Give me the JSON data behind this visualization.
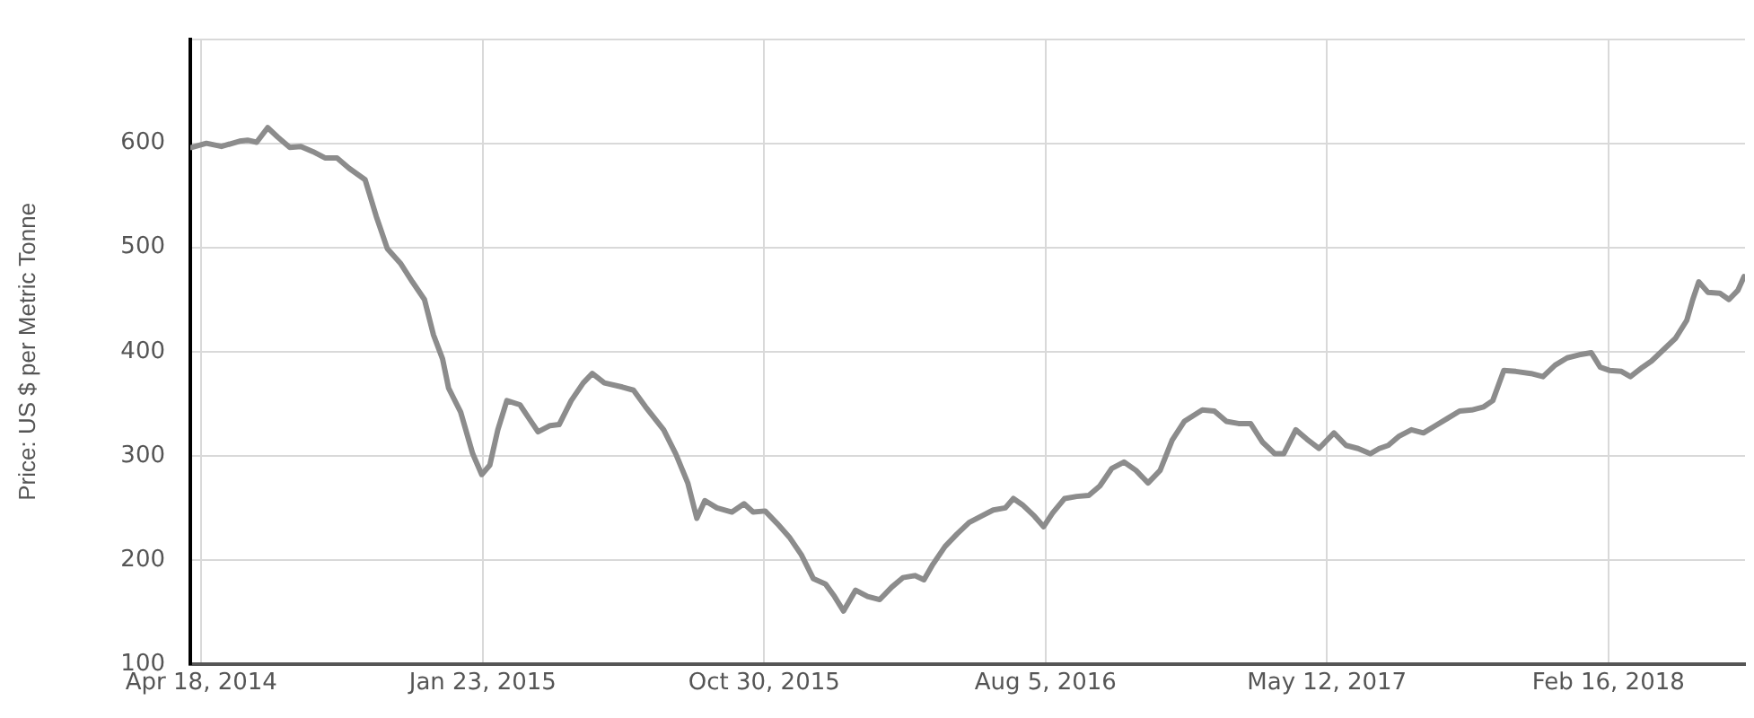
{
  "chart_data": {
    "type": "line",
    "ylabel": "Price: US $ per Metric Tonne",
    "xlim": [
      "2014-04-07",
      "2018-07-02"
    ],
    "xticks": [
      {
        "value": "2014-04-18",
        "label": "Apr 18, 2014"
      },
      {
        "value": "2015-01-23",
        "label": "Jan 23, 2015"
      },
      {
        "value": "2015-10-30",
        "label": "Oct 30, 2015"
      },
      {
        "value": "2016-08-05",
        "label": "Aug 5, 2016"
      },
      {
        "value": "2017-05-12",
        "label": "May 12, 2017"
      },
      {
        "value": "2018-02-16",
        "label": "Feb 16, 2018"
      }
    ],
    "ylim": [
      100,
      700
    ],
    "yticks": [
      100,
      200,
      300,
      400,
      500,
      600,
      {
        "value": 700,
        "label": null
      }
    ],
    "grid": true,
    "legend": false,
    "marker": "none",
    "line_style": "solid",
    "series": [
      {
        "color": "#8c8c8c",
        "x": [
          "2014-04-08",
          "2014-04-23",
          "2014-05-08",
          "2014-05-26",
          "2014-06-03",
          "2014-06-12",
          "2014-06-23",
          "2014-07-03",
          "2014-07-15",
          "2014-07-26",
          "2014-08-07",
          "2014-08-19",
          "2014-08-31",
          "2014-09-12",
          "2014-09-28",
          "2014-10-09",
          "2014-10-20",
          "2014-11-02",
          "2014-11-14",
          "2014-11-26",
          "2014-12-05",
          "2014-12-14",
          "2014-12-20",
          "2015-01-01",
          "2015-01-13",
          "2015-01-22",
          "2015-01-30",
          "2015-02-07",
          "2015-02-16",
          "2015-03-01",
          "2015-03-10",
          "2015-03-19",
          "2015-03-31",
          "2015-04-09",
          "2015-04-21",
          "2015-05-03",
          "2015-05-12",
          "2015-05-24",
          "2015-06-11",
          "2015-06-22",
          "2015-07-04",
          "2015-07-22",
          "2015-08-03",
          "2015-08-15",
          "2015-08-24",
          "2015-09-01",
          "2015-09-13",
          "2015-09-28",
          "2015-10-10",
          "2015-10-19",
          "2015-10-31",
          "2015-11-12",
          "2015-11-24",
          "2015-12-06",
          "2015-12-18",
          "2015-12-30",
          "2016-01-08",
          "2016-01-17",
          "2016-01-29",
          "2016-02-10",
          "2016-02-22",
          "2016-03-05",
          "2016-03-16",
          "2016-03-28",
          "2016-04-06",
          "2016-04-15",
          "2016-04-27",
          "2016-05-09",
          "2016-05-21",
          "2016-06-02",
          "2016-06-14",
          "2016-06-26",
          "2016-07-04",
          "2016-07-13",
          "2016-07-25",
          "2016-08-03",
          "2016-08-12",
          "2016-08-24",
          "2016-09-05",
          "2016-09-17",
          "2016-09-28",
          "2016-10-10",
          "2016-10-22",
          "2016-11-03",
          "2016-11-15",
          "2016-11-27",
          "2016-12-09",
          "2016-12-21",
          "2017-01-08",
          "2017-01-20",
          "2017-02-01",
          "2017-02-13",
          "2017-02-25",
          "2017-03-09",
          "2017-03-21",
          "2017-03-30",
          "2017-04-11",
          "2017-04-22",
          "2017-05-04",
          "2017-05-19",
          "2017-05-31",
          "2017-06-12",
          "2017-06-24",
          "2017-07-03",
          "2017-07-12",
          "2017-07-23",
          "2017-08-04",
          "2017-08-16",
          "2017-08-28",
          "2017-09-09",
          "2017-09-21",
          "2017-10-03",
          "2017-10-15",
          "2017-10-24",
          "2017-11-04",
          "2017-11-16",
          "2017-12-01",
          "2017-12-13",
          "2017-12-25",
          "2018-01-06",
          "2018-01-18",
          "2018-01-30",
          "2018-02-08",
          "2018-02-17",
          "2018-03-01",
          "2018-03-10",
          "2018-03-22",
          "2018-03-31",
          "2018-04-12",
          "2018-04-24",
          "2018-05-05",
          "2018-05-11",
          "2018-05-17",
          "2018-05-26",
          "2018-06-07",
          "2018-06-16",
          "2018-06-25",
          "2018-07-01"
        ],
        "values": [
          596,
          600,
          597,
          602,
          603,
          601,
          615,
          606,
          596,
          597,
          592,
          586,
          586,
          576,
          565,
          530,
          499,
          485,
          467,
          450,
          416,
          393,
          365,
          342,
          302,
          282,
          291,
          325,
          353,
          349,
          336,
          323,
          329,
          330,
          353,
          370,
          379,
          370,
          366,
          363,
          347,
          325,
          302,
          274,
          240,
          257,
          250,
          246,
          254,
          246,
          247,
          235,
          222,
          205,
          182,
          177,
          165,
          151,
          171,
          165,
          162,
          174,
          183,
          185,
          181,
          196,
          213,
          225,
          236,
          242,
          248,
          250,
          259,
          253,
          242,
          232,
          245,
          259,
          261,
          262,
          271,
          288,
          294,
          286,
          274,
          286,
          315,
          333,
          344,
          343,
          333,
          331,
          331,
          313,
          302,
          302,
          325,
          316,
          307,
          322,
          310,
          307,
          302,
          307,
          310,
          319,
          325,
          322,
          329,
          336,
          343,
          344,
          347,
          353,
          382,
          381,
          379,
          376,
          387,
          394,
          397,
          399,
          385,
          382,
          381,
          376,
          385,
          391,
          402,
          413,
          430,
          450,
          467,
          457,
          456,
          450,
          459,
          472
        ]
      }
    ]
  }
}
